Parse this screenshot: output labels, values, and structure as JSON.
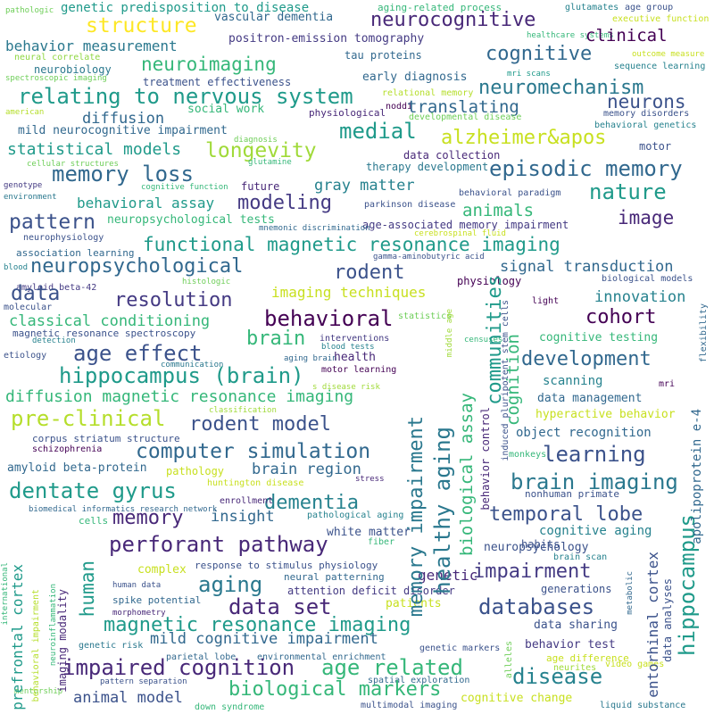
{
  "words": [
    {
      "id": "w1",
      "text": "genetic predisposition to disease",
      "color": "#1f9a8a"
    },
    {
      "id": "w2",
      "text": "aging-related process",
      "color": "#35b779"
    },
    {
      "id": "w3",
      "text": "glutamates",
      "color": "#26828e"
    },
    {
      "id": "w4",
      "text": "age group",
      "color": "#3b528b"
    },
    {
      "id": "w5",
      "text": "executive function",
      "color": "#c8e020"
    },
    {
      "id": "w6",
      "text": "pathologic",
      "color": "#6ece58"
    },
    {
      "id": "w7",
      "text": "structure",
      "color": "#fde725"
    },
    {
      "id": "w8",
      "text": "vascular dementia",
      "color": "#31688e"
    },
    {
      "id": "w9",
      "text": "neurocognitive",
      "color": "#482878"
    },
    {
      "id": "w10",
      "text": "healthcare systems",
      "color": "#35b779"
    },
    {
      "id": "w11",
      "text": "behavior measurement",
      "color": "#2a788e"
    },
    {
      "id": "w12",
      "text": "positron-emission tomography",
      "color": "#443a83"
    },
    {
      "id": "w13",
      "text": "clinical",
      "color": "#440154"
    },
    {
      "id": "w14",
      "text": "cognitive",
      "color": "#31688e"
    },
    {
      "id": "w15",
      "text": "neural correlate",
      "color": "#90d743"
    },
    {
      "id": "w16",
      "text": "neuroimaging",
      "color": "#35b779"
    },
    {
      "id": "w17",
      "text": "tau proteins",
      "color": "#31688e"
    },
    {
      "id": "w18",
      "text": "neurobiology",
      "color": "#2a788e"
    },
    {
      "id": "w19",
      "text": "mri scans",
      "color": "#1f9a8a"
    },
    {
      "id": "w20",
      "text": "outcome measure",
      "color": "#c8e020"
    },
    {
      "id": "w21",
      "text": "spectroscopic imaging",
      "color": "#6ece58"
    },
    {
      "id": "w22",
      "text": "treatment effectiveness",
      "color": "#3b528b"
    },
    {
      "id": "w23",
      "text": "sequence learning",
      "color": "#26828e"
    },
    {
      "id": "w24",
      "text": "relating to nervous system",
      "color": "#1f9a8a"
    },
    {
      "id": "w25",
      "text": "early diagnosis",
      "color": "#31688e"
    },
    {
      "id": "w26",
      "text": "neuromechanism",
      "color": "#2a788e"
    },
    {
      "id": "w27",
      "text": "relational memory",
      "color": "#b5de2b"
    },
    {
      "id": "w28",
      "text": "neurons",
      "color": "#3b528b"
    },
    {
      "id": "w29",
      "text": "american",
      "color": "#b5de2b"
    },
    {
      "id": "w30",
      "text": "noddi",
      "color": "#440154"
    },
    {
      "id": "w31",
      "text": "diffusion",
      "color": "#31688e"
    },
    {
      "id": "w32",
      "text": "social work",
      "color": "#35b779"
    },
    {
      "id": "w33",
      "text": "physiological",
      "color": "#482878"
    },
    {
      "id": "w34",
      "text": "translating",
      "color": "#31688e"
    },
    {
      "id": "w35",
      "text": "memory disorders",
      "color": "#3b528b"
    },
    {
      "id": "w36",
      "text": "developmental disease",
      "color": "#6ece58"
    },
    {
      "id": "w37",
      "text": "behavioral genetics",
      "color": "#26828e"
    },
    {
      "id": "w38",
      "text": "mild neurocognitive impairment",
      "color": "#31688e"
    },
    {
      "id": "w39",
      "text": "medial",
      "color": "#1f9a8a"
    },
    {
      "id": "w40",
      "text": "alzheimer&apos",
      "color": "#c8e020"
    },
    {
      "id": "w41",
      "text": "diagnosis",
      "color": "#6ece58"
    },
    {
      "id": "w42",
      "text": "statistical models",
      "color": "#1f9a8a"
    },
    {
      "id": "w43",
      "text": "longevity",
      "color": "#a0da39"
    },
    {
      "id": "w44",
      "text": "data collection",
      "color": "#482878"
    },
    {
      "id": "w45",
      "text": "motor",
      "color": "#3b528b"
    },
    {
      "id": "w46",
      "text": "cellular structures",
      "color": "#6ece58"
    },
    {
      "id": "w47",
      "text": "glutamine",
      "color": "#35b779"
    },
    {
      "id": "w48",
      "text": "memory loss",
      "color": "#31688e"
    },
    {
      "id": "w49",
      "text": "therapy development",
      "color": "#2a788e"
    },
    {
      "id": "w50",
      "text": "episodic memory",
      "color": "#31688e"
    },
    {
      "id": "w51",
      "text": "genotype",
      "color": "#443a83"
    },
    {
      "id": "w52",
      "text": "cognitive function",
      "color": "#35b779"
    },
    {
      "id": "w53",
      "text": "future",
      "color": "#482878"
    },
    {
      "id": "w54",
      "text": "gray matter",
      "color": "#26828e"
    },
    {
      "id": "w55",
      "text": "nature",
      "color": "#1f9a8a"
    },
    {
      "id": "w56",
      "text": "environment",
      "color": "#2a788e"
    },
    {
      "id": "w57",
      "text": "behavioral paradigm",
      "color": "#3b528b"
    },
    {
      "id": "w58",
      "text": "behavioral assay",
      "color": "#1f9a8a"
    },
    {
      "id": "w59",
      "text": "modeling",
      "color": "#443a83"
    },
    {
      "id": "w60",
      "text": "parkinson disease",
      "color": "#3b528b"
    },
    {
      "id": "w61",
      "text": "animals",
      "color": "#35b779"
    },
    {
      "id": "w62",
      "text": "image",
      "color": "#482878"
    },
    {
      "id": "w63",
      "text": "pattern",
      "color": "#3b528b"
    },
    {
      "id": "w64",
      "text": "neuropsychological tests",
      "color": "#35b779"
    },
    {
      "id": "w65",
      "text": "age-associated memory impairment",
      "color": "#443a83"
    },
    {
      "id": "w66",
      "text": "neurophysiology",
      "color": "#3b528b"
    },
    {
      "id": "w67",
      "text": "mnemonic discrimination",
      "color": "#31688e"
    },
    {
      "id": "w68",
      "text": "cerebrospinal fluid",
      "color": "#c8e020"
    },
    {
      "id": "w69",
      "text": "functional magnetic resonance imaging",
      "color": "#1f9a8a"
    },
    {
      "id": "w70",
      "text": "association learning",
      "color": "#31688e"
    },
    {
      "id": "w71",
      "text": "gamma-aminobutyric acid",
      "color": "#3b528b"
    },
    {
      "id": "w72",
      "text": "blood",
      "color": "#26828e"
    },
    {
      "id": "w73",
      "text": "neuropsychological",
      "color": "#31688e"
    },
    {
      "id": "w74",
      "text": "rodent",
      "color": "#3b528b"
    },
    {
      "id": "w75",
      "text": "signal transduction",
      "color": "#31688e"
    },
    {
      "id": "w76",
      "text": "amyloid beta-42",
      "color": "#443a83"
    },
    {
      "id": "w77",
      "text": "histologic",
      "color": "#6ece58"
    },
    {
      "id": "w78",
      "text": "physiology",
      "color": "#440154"
    },
    {
      "id": "w79",
      "text": "biological models",
      "color": "#3b528b"
    },
    {
      "id": "w80",
      "text": "data",
      "color": "#3b528b"
    },
    {
      "id": "w81",
      "text": "resolution",
      "color": "#443a83"
    },
    {
      "id": "w82",
      "text": "imaging techniques",
      "color": "#c8e020"
    },
    {
      "id": "w83",
      "text": "innovation",
      "color": "#26828e"
    },
    {
      "id": "w84",
      "text": "molecular",
      "color": "#3b528b"
    },
    {
      "id": "w85",
      "text": "light",
      "color": "#440154"
    },
    {
      "id": "w86",
      "text": "cohort",
      "color": "#440154"
    },
    {
      "id": "w87",
      "text": "classical conditioning",
      "color": "#35b779"
    },
    {
      "id": "w88",
      "text": "behavioral",
      "color": "#440154"
    },
    {
      "id": "w89",
      "text": "statistics",
      "color": "#6ece58"
    },
    {
      "id": "w90",
      "text": "magnetic resonance spectroscopy",
      "color": "#3b528b"
    },
    {
      "id": "w91",
      "text": "brain",
      "color": "#35b779"
    },
    {
      "id": "w92",
      "text": "detection",
      "color": "#26828e"
    },
    {
      "id": "w93",
      "text": "interventions",
      "color": "#443a83"
    },
    {
      "id": "w94",
      "text": "censuses",
      "color": "#35b779"
    },
    {
      "id": "w95",
      "text": "cognitive testing",
      "color": "#35b779"
    },
    {
      "id": "w96",
      "text": "etiology",
      "color": "#3b528b"
    },
    {
      "id": "w97",
      "text": "age effect",
      "color": "#3b528b"
    },
    {
      "id": "w98",
      "text": "blood tests",
      "color": "#26828e"
    },
    {
      "id": "w99",
      "text": "development",
      "color": "#31688e"
    },
    {
      "id": "w100",
      "text": "communication",
      "color": "#2a788e"
    },
    {
      "id": "w101",
      "text": "aging brain",
      "color": "#31688e"
    },
    {
      "id": "w102",
      "text": "health",
      "color": "#482878"
    },
    {
      "id": "w103",
      "text": "hippocampus (brain)",
      "color": "#1f9a8a"
    },
    {
      "id": "w104",
      "text": "motor learning",
      "color": "#440154"
    },
    {
      "id": "w105",
      "text": "s disease risk",
      "color": "#a0da39"
    },
    {
      "id": "w106",
      "text": "diffusion magnetic resonance imaging",
      "color": "#35b779"
    },
    {
      "id": "w107",
      "text": "classification",
      "color": "#a0da39"
    },
    {
      "id": "w108",
      "text": "data management",
      "color": "#31688e"
    },
    {
      "id": "w109",
      "text": "scanning",
      "color": "#26828e"
    },
    {
      "id": "w110",
      "text": "pre-clinical",
      "color": "#b5de2b"
    },
    {
      "id": "w111",
      "text": "rodent model",
      "color": "#3b528b"
    },
    {
      "id": "w112",
      "text": "hyperactive behavior",
      "color": "#c8e020"
    },
    {
      "id": "w113",
      "text": "corpus striatum structure",
      "color": "#3b528b"
    },
    {
      "id": "w114",
      "text": "object recognition",
      "color": "#31688e"
    },
    {
      "id": "w115",
      "text": "schizophrenia",
      "color": "#440154"
    },
    {
      "id": "w116",
      "text": "computer simulation",
      "color": "#31688e"
    },
    {
      "id": "w117",
      "text": "learning",
      "color": "#3b528b"
    },
    {
      "id": "w118",
      "text": "amyloid beta-protein",
      "color": "#31688e"
    },
    {
      "id": "w119",
      "text": "pathology",
      "color": "#c8e020"
    },
    {
      "id": "w120",
      "text": "brain region",
      "color": "#31688e"
    },
    {
      "id": "w121",
      "text": "monkeys",
      "color": "#35b779"
    },
    {
      "id": "w122",
      "text": "brain imaging",
      "color": "#2a788e"
    },
    {
      "id": "w123",
      "text": "huntington disease",
      "color": "#c8e020"
    },
    {
      "id": "w124",
      "text": "stress",
      "color": "#482878"
    },
    {
      "id": "w125",
      "text": "dentate gyrus",
      "color": "#1f9a8a"
    },
    {
      "id": "w126",
      "text": "dementia",
      "color": "#26828e"
    },
    {
      "id": "w127",
      "text": "nonhuman primate",
      "color": "#3b528b"
    },
    {
      "id": "w128",
      "text": "enrollment",
      "color": "#482878"
    },
    {
      "id": "w129",
      "text": "biomedical informatics research network",
      "color": "#31688e"
    },
    {
      "id": "w130",
      "text": "insight",
      "color": "#31688e"
    },
    {
      "id": "w131",
      "text": "memory",
      "color": "#482878"
    },
    {
      "id": "w132",
      "text": "temporal lobe",
      "color": "#3b528b"
    },
    {
      "id": "w133",
      "text": "cells",
      "color": "#35b779"
    },
    {
      "id": "w134",
      "text": "pathological aging",
      "color": "#26828e"
    },
    {
      "id": "w135",
      "text": "cognitive aging",
      "color": "#26828e"
    },
    {
      "id": "w136",
      "text": "perforant pathway",
      "color": "#482878"
    },
    {
      "id": "w137",
      "text": "white matter",
      "color": "#3b528b"
    },
    {
      "id": "w138",
      "text": "fiber",
      "color": "#35b779"
    },
    {
      "id": "w139",
      "text": "habits",
      "color": "#3b528b"
    },
    {
      "id": "w140",
      "text": "brain scan",
      "color": "#26828e"
    },
    {
      "id": "w141",
      "text": "neuropsychology",
      "color": "#3b528b"
    },
    {
      "id": "w142",
      "text": "complex",
      "color": "#c8e020"
    },
    {
      "id": "w143",
      "text": "genetic",
      "color": "#482878"
    },
    {
      "id": "w144",
      "text": "impairment",
      "color": "#443a83"
    },
    {
      "id": "w145",
      "text": "response to stimulus physiology",
      "color": "#3b528b"
    },
    {
      "id": "w146",
      "text": "aging",
      "color": "#2a788e"
    },
    {
      "id": "w147",
      "text": "neural patterning",
      "color": "#31688e"
    },
    {
      "id": "w148",
      "text": "generations",
      "color": "#3b528b"
    },
    {
      "id": "w149",
      "text": "human data",
      "color": "#3b528b"
    },
    {
      "id": "w150",
      "text": "attention deficit disorder",
      "color": "#443a83"
    },
    {
      "id": "w151",
      "text": "spike potential",
      "color": "#31688e"
    },
    {
      "id": "w152",
      "text": "data set",
      "color": "#482878"
    },
    {
      "id": "w153",
      "text": "patients",
      "color": "#c8e020"
    },
    {
      "id": "w154",
      "text": "databases",
      "color": "#3b528b"
    },
    {
      "id": "w155",
      "text": "morphometry",
      "color": "#482878"
    },
    {
      "id": "w156",
      "text": "magnetic resonance imaging",
      "color": "#1f9a8a"
    },
    {
      "id": "w157",
      "text": "data sharing",
      "color": "#3b528b"
    },
    {
      "id": "w158",
      "text": "mild cognitive impairment",
      "color": "#31688e"
    },
    {
      "id": "w159",
      "text": "behavior test",
      "color": "#443a83"
    },
    {
      "id": "w160",
      "text": "genetic risk",
      "color": "#2a788e"
    },
    {
      "id": "w161",
      "text": "parietal lobe",
      "color": "#31688e"
    },
    {
      "id": "w162",
      "text": "genetic markers",
      "color": "#3b528b"
    },
    {
      "id": "w163",
      "text": "age difference",
      "color": "#c8e020"
    },
    {
      "id": "w164",
      "text": "impaired cognition",
      "color": "#482878"
    },
    {
      "id": "w165",
      "text": "environmental enrichment",
      "color": "#31688e"
    },
    {
      "id": "w166",
      "text": "age related",
      "color": "#35b779"
    },
    {
      "id": "w167",
      "text": "neurites",
      "color": "#a0da39"
    },
    {
      "id": "w168",
      "text": "video games",
      "color": "#c8e020"
    },
    {
      "id": "w169",
      "text": "disease",
      "color": "#26828e"
    },
    {
      "id": "w170",
      "text": "pattern separation",
      "color": "#3b528b"
    },
    {
      "id": "w171",
      "text": "spatial exploration",
      "color": "#31688e"
    },
    {
      "id": "w172",
      "text": "biological markers",
      "color": "#35b779"
    },
    {
      "id": "w173",
      "text": "mentorship",
      "color": "#6ece58"
    },
    {
      "id": "w174",
      "text": "animal model",
      "color": "#3b528b"
    },
    {
      "id": "w175",
      "text": "cognitive change",
      "color": "#c8e020"
    },
    {
      "id": "w176",
      "text": "down syndrome",
      "color": "#35b779"
    },
    {
      "id": "w177",
      "text": "multimodal imaging",
      "color": "#3b528b"
    },
    {
      "id": "w178",
      "text": "liquid substance",
      "color": "#2a788e"
    },
    {
      "id": "w179",
      "text": "memory impairment",
      "color": "#2a788e"
    },
    {
      "id": "w180",
      "text": "healthy aging",
      "color": "#2a788e"
    },
    {
      "id": "w181",
      "text": "communities",
      "color": "#1f9a8a"
    },
    {
      "id": "w182",
      "text": "biological assay",
      "color": "#35b779"
    },
    {
      "id": "w183",
      "text": "cognition",
      "color": "#35b779"
    },
    {
      "id": "w184",
      "text": "behavior control",
      "color": "#482878"
    },
    {
      "id": "w185",
      "text": "induced pluripotent stem cells",
      "color": "#3b528b"
    },
    {
      "id": "w186",
      "text": "middle age",
      "color": "#a0da39"
    },
    {
      "id": "w187",
      "text": "hippocampus",
      "color": "#1f9a8a"
    },
    {
      "id": "w188",
      "text": "apolipoprotein e-4",
      "color": "#31688e"
    },
    {
      "id": "w189",
      "text": "flexibility",
      "color": "#31688e"
    },
    {
      "id": "w190",
      "text": "mri",
      "color": "#440154"
    },
    {
      "id": "w191",
      "text": "entorhinal cortex",
      "color": "#3b528b"
    },
    {
      "id": "w192",
      "text": "data analyses",
      "color": "#3b528b"
    },
    {
      "id": "w193",
      "text": "metabolic",
      "color": "#31688e"
    },
    {
      "id": "w194",
      "text": "alleles",
      "color": "#6ece58"
    },
    {
      "id": "w195",
      "text": "human",
      "color": "#1f9a8a"
    },
    {
      "id": "w196",
      "text": "prefrontal cortex",
      "color": "#1f9a8a"
    },
    {
      "id": "w197",
      "text": "behavioral impairment",
      "color": "#b5de2b"
    },
    {
      "id": "w198",
      "text": "imaging modality",
      "color": "#482878"
    },
    {
      "id": "w199",
      "text": "neuroinflammation",
      "color": "#35b779"
    },
    {
      "id": "w200",
      "text": "international",
      "color": "#35b779"
    }
  ]
}
